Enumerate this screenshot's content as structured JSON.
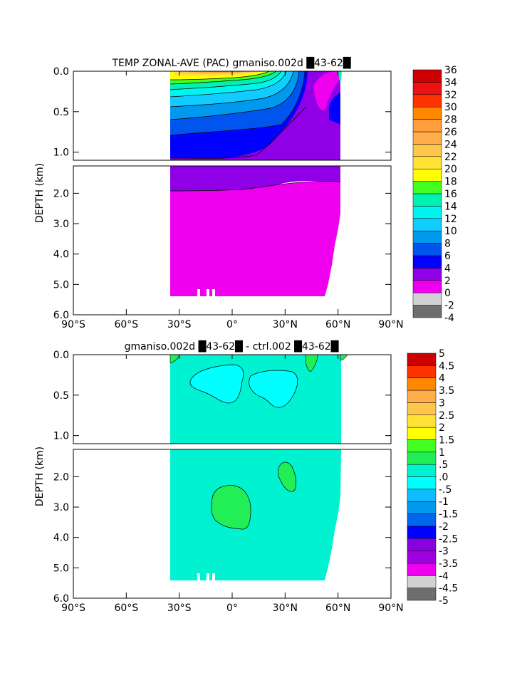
{
  "chart_data": [
    {
      "type": "heatmap",
      "subtype": "filled-contour depth-latitude section",
      "title": "TEMP ZONAL-AVE (PAC) gmaniso.002d █43-62█",
      "ylabel": "DEPTH (km)",
      "xlabel": "",
      "x_ticks": [
        -90,
        -60,
        -30,
        0,
        30,
        60,
        90
      ],
      "x_tick_labels": [
        "90°S",
        "60°S",
        "30°S",
        "0°",
        "30°N",
        "60°N",
        "90°N"
      ],
      "y_ticks_upper": [
        0.0,
        0.5,
        1.0
      ],
      "y_tick_labels_upper": [
        "0.0",
        "0.5",
        "1.0"
      ],
      "y_ticks_lower": [
        2.0,
        3.0,
        4.0,
        5.0,
        6.0
      ],
      "y_tick_labels_lower": [
        "2.0",
        "3.0",
        "4.0",
        "5.0",
        "6.0"
      ],
      "xlim": [
        -90,
        90
      ],
      "ylim_upper": [
        0,
        1.1
      ],
      "ylim_lower": [
        1.1,
        6.0
      ],
      "data_extent_lat": [
        -34,
        61
      ],
      "data_extent_depth": [
        0,
        5.4
      ],
      "colorbar_levels": [
        -4,
        -2,
        0,
        2,
        4,
        6,
        8,
        10,
        12,
        14,
        16,
        18,
        20,
        22,
        24,
        26,
        28,
        30,
        32,
        34,
        36
      ],
      "colorbar_labels": [
        "-4",
        "-2",
        "0",
        "2",
        "4",
        "6",
        "8",
        "10",
        "12",
        "14",
        "16",
        "18",
        "20",
        "22",
        "24",
        "26",
        "28",
        "30",
        "32",
        "34",
        "36"
      ],
      "colorbar_colors": [
        "#6e6e6e",
        "#d2d2d2",
        "#ee00ee",
        "#8f00e6",
        "#0000ff",
        "#0055ee",
        "#0099ee",
        "#11ccff",
        "#00f5ee",
        "#00f2b0",
        "#44ff22",
        "#ffff00",
        "#ffe234",
        "#ffc64c",
        "#ffad48",
        "#ff9e3a",
        "#ff8800",
        "#ff3300",
        "#ee1111",
        "#cc0000"
      ]
    },
    {
      "type": "heatmap",
      "subtype": "filled-contour depth-latitude difference section",
      "title": "gmaniso.002d █43-62█ - ctrl.002 █43-62█",
      "ylabel": "DEPTH (km)",
      "xlabel": "",
      "x_ticks": [
        -90,
        -60,
        -30,
        0,
        30,
        60,
        90
      ],
      "x_tick_labels": [
        "90°S",
        "60°S",
        "30°S",
        "0°",
        "30°N",
        "60°N",
        "90°N"
      ],
      "y_ticks_upper": [
        0.0,
        0.5,
        1.0
      ],
      "y_tick_labels_upper": [
        "0.0",
        "0.5",
        "1.0"
      ],
      "y_ticks_lower": [
        2.0,
        3.0,
        4.0,
        5.0,
        6.0
      ],
      "y_tick_labels_lower": [
        "2.0",
        "3.0",
        "4.0",
        "5.0",
        "6.0"
      ],
      "xlim": [
        -90,
        90
      ],
      "ylim_upper": [
        0,
        1.1
      ],
      "ylim_lower": [
        1.1,
        6.0
      ],
      "data_extent_lat": [
        -34,
        61
      ],
      "data_extent_depth": [
        0,
        5.4
      ],
      "background_value_range": [
        -0.5,
        0
      ],
      "colorbar_levels": [
        -5,
        -4.5,
        -4,
        -3.5,
        -3,
        -2.5,
        -2,
        -1.5,
        -1,
        -0.5,
        0,
        0.5,
        1,
        1.5,
        2,
        2.5,
        3,
        3.5,
        4,
        4.5,
        5
      ],
      "colorbar_labels": [
        "-5",
        "-4.5",
        "-4",
        "-3.5",
        "-3",
        "-2.5",
        "-2",
        "-1.5",
        "-1",
        "-.5",
        ".0",
        ".5",
        "1",
        "1.5",
        "2",
        "2.5",
        "3",
        "3.5",
        "4",
        "4.5",
        "5"
      ],
      "colorbar_colors": [
        "#6e6e6e",
        "#d2d2d2",
        "#ee00ee",
        "#a000e0",
        "#8800dd",
        "#0000ff",
        "#0066ee",
        "#0099ee",
        "#11bbff",
        "#00ffff",
        "#00f2d0",
        "#22ee55",
        "#44ff22",
        "#ffff00",
        "#ffe234",
        "#ffc64c",
        "#ffad48",
        "#ff8800",
        "#ff3300",
        "#cc0000"
      ]
    }
  ]
}
